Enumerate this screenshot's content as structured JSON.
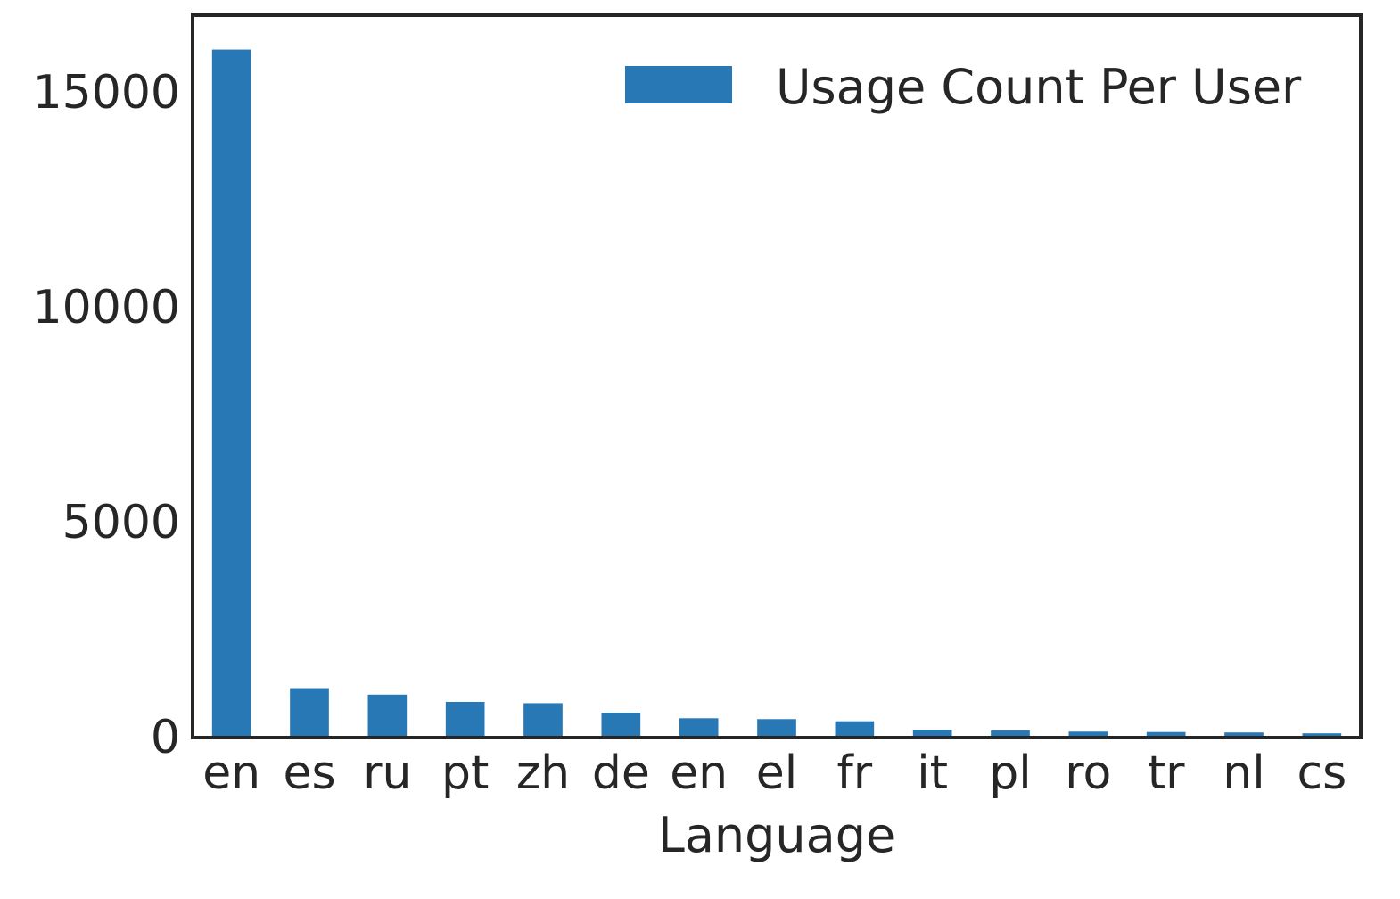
{
  "chart_data": {
    "type": "bar",
    "categories": [
      "en",
      "es",
      "ru",
      "pt",
      "zh",
      "de",
      "en",
      "el",
      "fr",
      "it",
      "pl",
      "ro",
      "tr",
      "nl",
      "cs"
    ],
    "series": [
      {
        "name": "Usage Count Per User",
        "values": [
          16000,
          1150,
          1000,
          830,
          800,
          580,
          450,
          430,
          380,
          185,
          165,
          140,
          130,
          120,
          100
        ],
        "color": "#2878b5"
      }
    ],
    "xlabel": "Language",
    "ylabel": "",
    "ylim": [
      0,
      16800
    ],
    "yticks": [
      0,
      5000,
      10000,
      15000
    ],
    "ytick_labels": [
      "0",
      "5000",
      "10000",
      "15000"
    ],
    "grid": false,
    "legend": "top-right"
  }
}
